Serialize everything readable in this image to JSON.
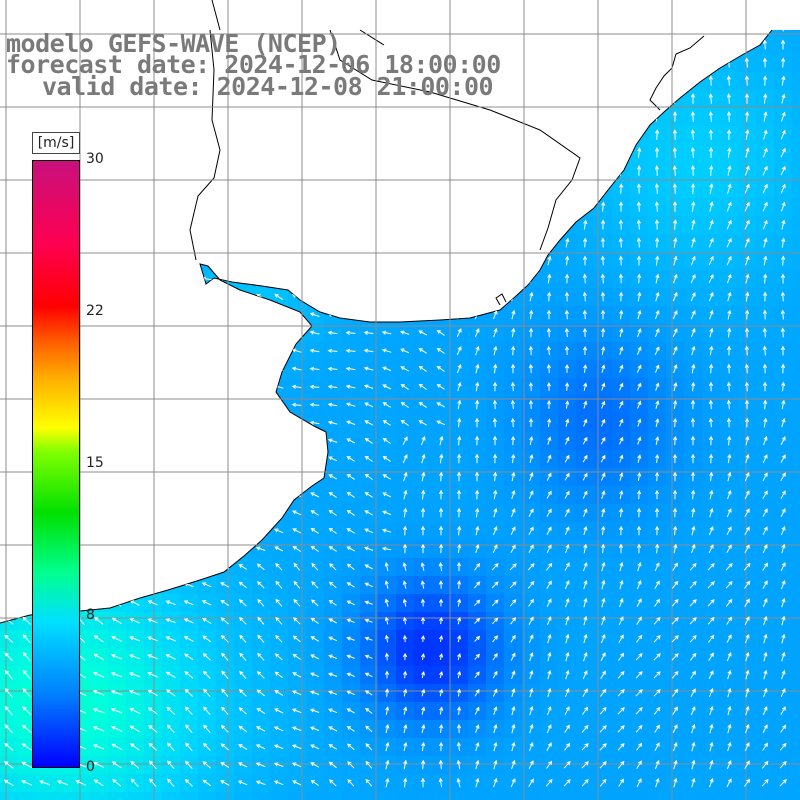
{
  "header": {
    "model_line": "modelo GEFS-WAVE (NCEP)",
    "forecast_line": "forecast date: 2024-12-06 18:00:00",
    "valid_line": "valid date: 2024-12-08 21:00:00"
  },
  "colorbar": {
    "unit": "[m/s]",
    "ticks": [
      "30",
      "22",
      "15",
      "8",
      "0"
    ],
    "tick_values": [
      30,
      22,
      15,
      8,
      0
    ],
    "range": [
      0,
      30
    ],
    "colors": [
      "#0000ff",
      "#0080ff",
      "#00e0ff",
      "#00ff90",
      "#00e000",
      "#80ff00",
      "#ffff00",
      "#ffb000",
      "#ff6000",
      "#ff0000",
      "#ff0050",
      "#c8107c"
    ]
  },
  "map": {
    "land_color": "#ffffff",
    "grid_color": "#808080",
    "coast_color": "#000000",
    "vector_color": "#ffffff"
  }
}
